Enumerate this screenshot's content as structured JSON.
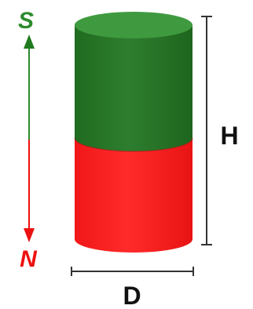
{
  "labels": {
    "south": "S",
    "north": "N",
    "height": "H",
    "diameter": "D"
  },
  "colors": {
    "south_pole": "#2e7d32",
    "south_pole_top": "#47a047",
    "north_pole": "#ff2020",
    "north_pole_bottom": "#e01010",
    "south_arrow": "#2e8b2e",
    "north_arrow": "#ee1111",
    "dimension_line": "#333333",
    "text_dark": "#111111"
  }
}
